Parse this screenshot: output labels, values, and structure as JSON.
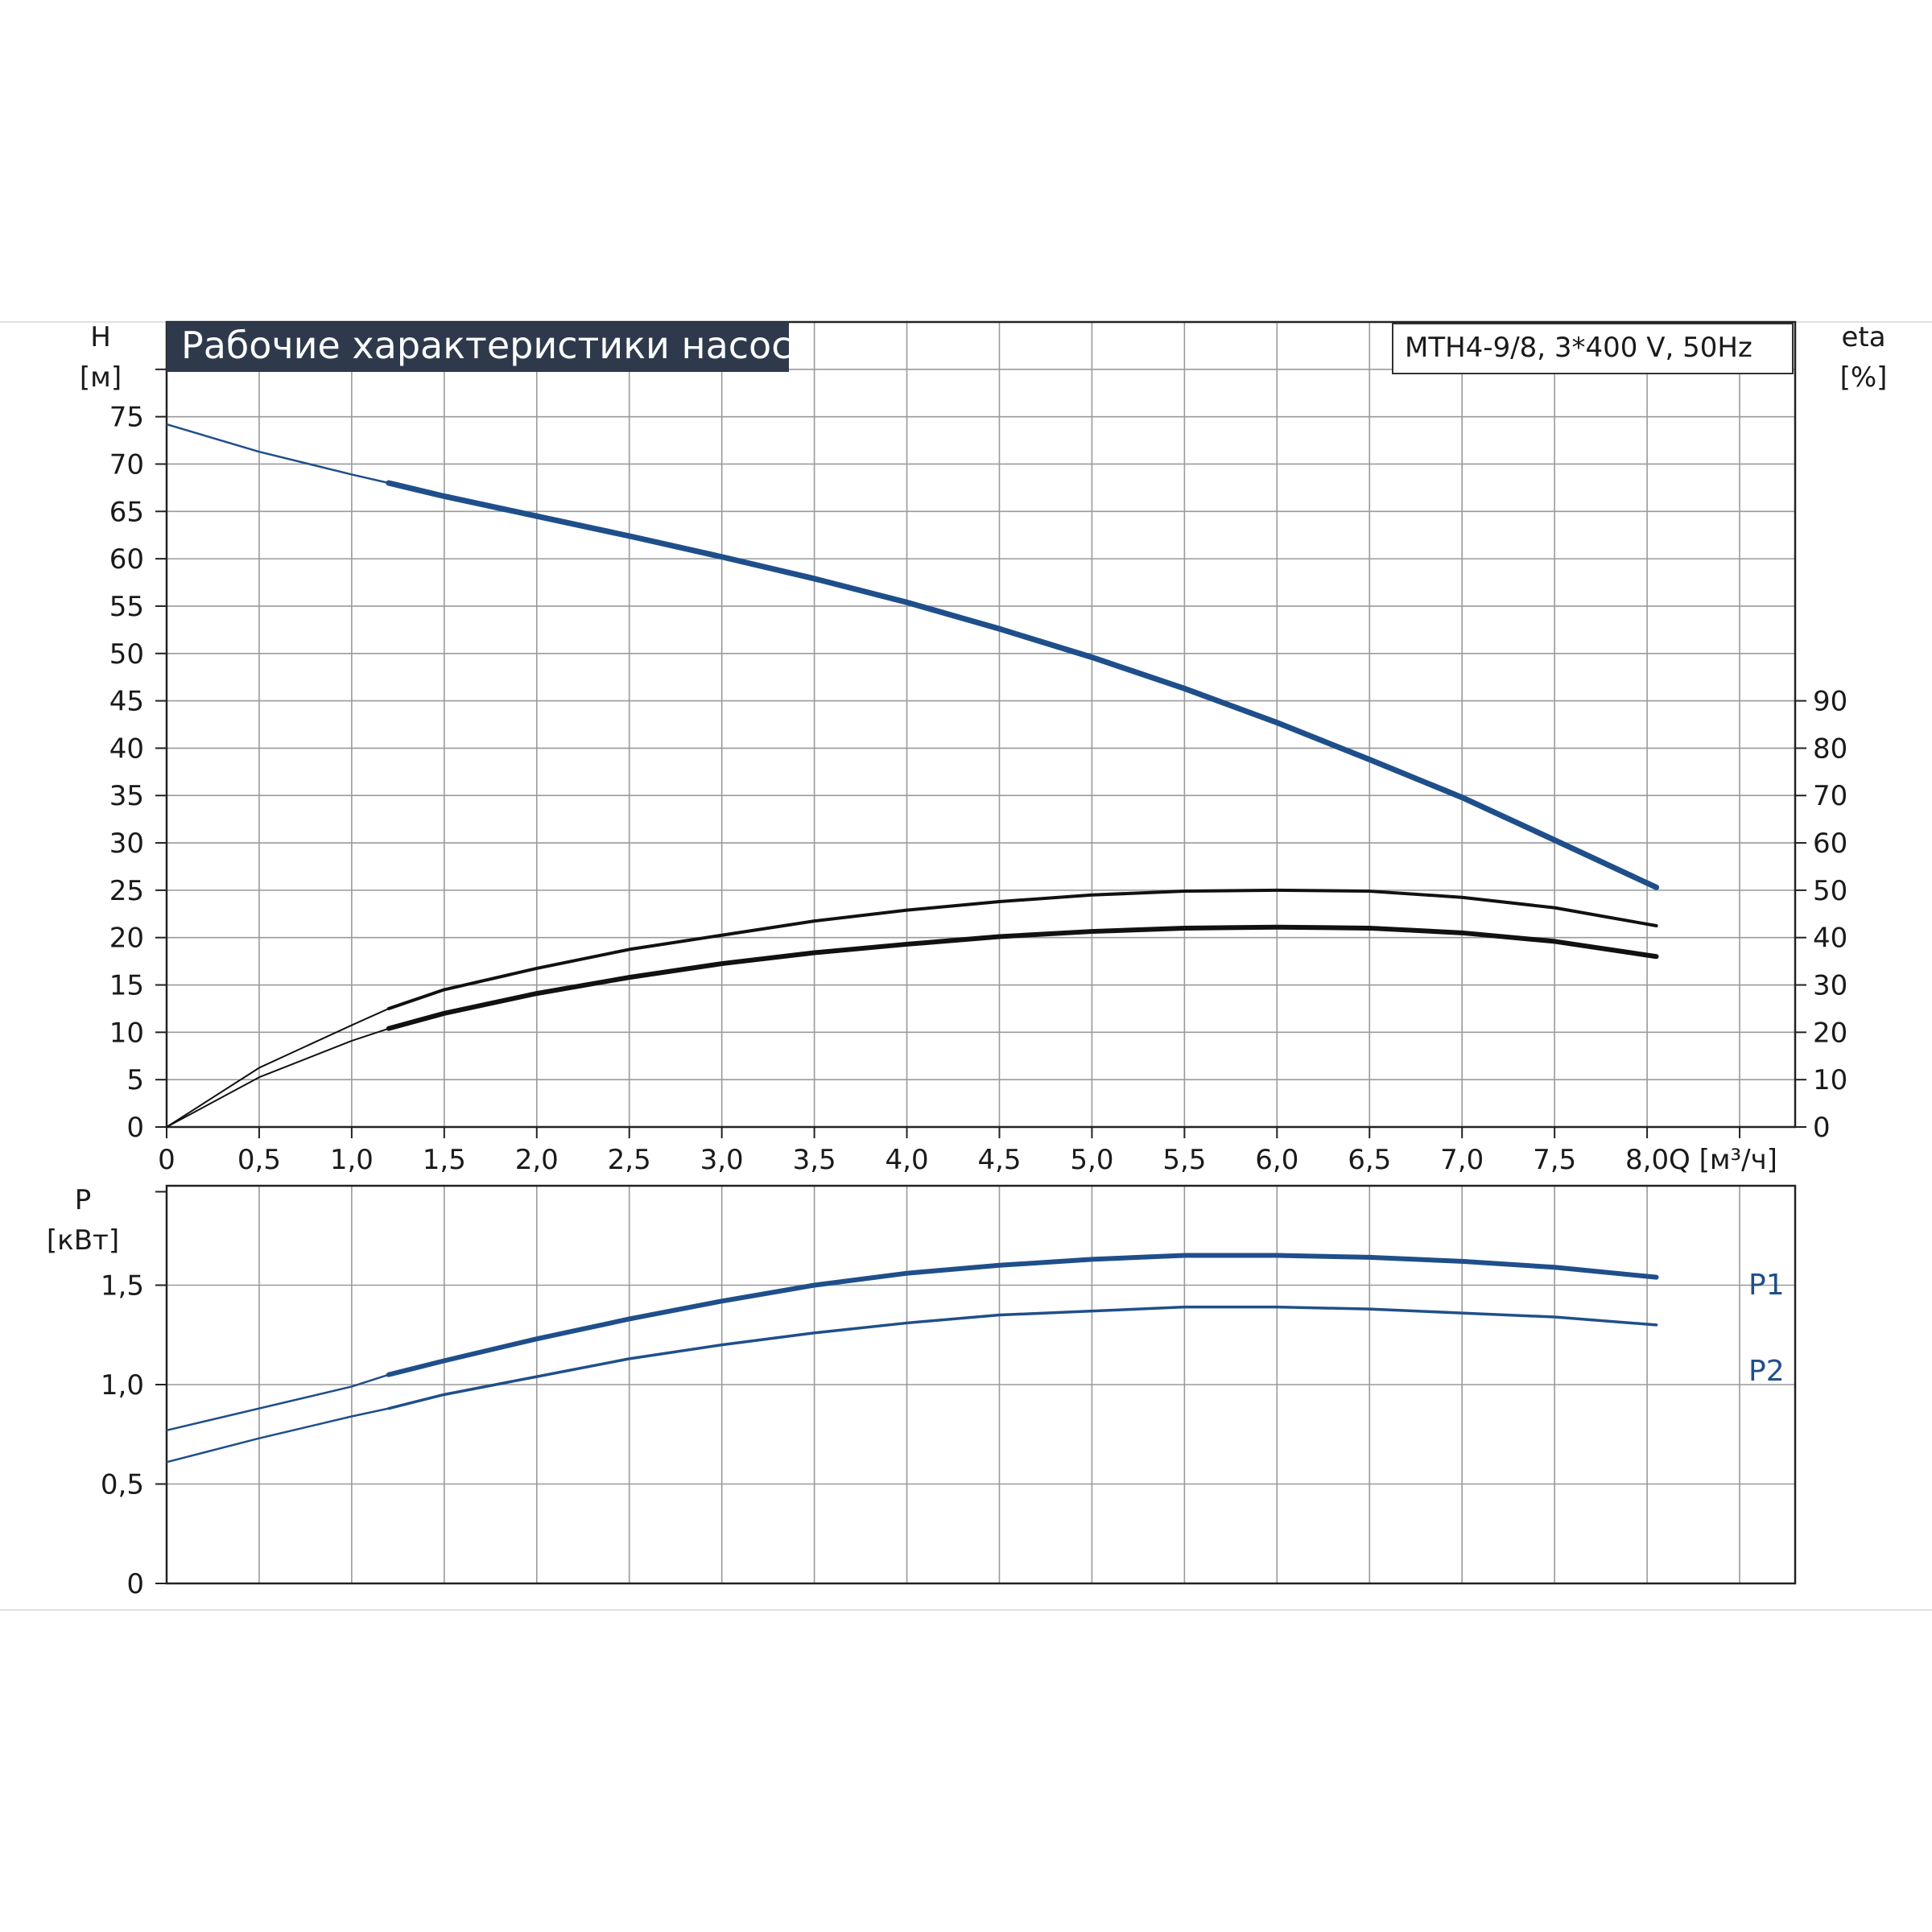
{
  "chart_data": [
    {
      "type": "line",
      "title": "Рабочие характеристики насоса",
      "subtitle": "MTH4-9/8, 3*400 V, 50Hz",
      "xlabel": "Q [м³/ч]",
      "ylabel_left": [
        "H",
        "[м]"
      ],
      "ylabel_right": [
        "eta",
        "[%]"
      ],
      "xlim": [
        0,
        8.8
      ],
      "ylim_left": [
        0,
        85
      ],
      "ylim_right": [
        0,
        170
      ],
      "x_ticks": [
        "0",
        "0,5",
        "1,0",
        "1,5",
        "2,0",
        "2,5",
        "3,0",
        "3,5",
        "4,0",
        "4,5",
        "5,0",
        "5,5",
        "6,0",
        "6,5",
        "7,0",
        "7,5",
        "8,0"
      ],
      "y_ticks_left": [
        "0",
        "5",
        "10",
        "15",
        "20",
        "25",
        "30",
        "35",
        "40",
        "45",
        "50",
        "55",
        "60",
        "65",
        "70",
        "75"
      ],
      "y_ticks_right": [
        "0",
        "10",
        "20",
        "30",
        "40",
        "50",
        "60",
        "70",
        "80",
        "90"
      ],
      "grid": true,
      "series": [
        {
          "axis": "left",
          "color": "#1f4f8b",
          "x": [
            0,
            0.5,
            1.0,
            1.2,
            1.5,
            2.0,
            2.5,
            3.0,
            3.5,
            4.0,
            4.5,
            5.0,
            5.5,
            6.0,
            6.5,
            7.0,
            7.5,
            8.05
          ],
          "values": [
            74.2,
            71.3,
            68.9,
            68.0,
            66.6,
            64.5,
            62.4,
            60.2,
            57.9,
            55.4,
            52.6,
            49.6,
            46.3,
            42.7,
            38.8,
            34.8,
            30.3,
            25.3
          ]
        },
        {
          "axis": "right",
          "color": "#111111",
          "x": [
            0,
            0.5,
            1.0,
            1.2,
            1.5,
            2.0,
            2.5,
            3.0,
            3.5,
            4.0,
            4.5,
            5.0,
            5.5,
            6.0,
            6.5,
            7.0,
            7.5,
            8.05
          ],
          "values": [
            0,
            12.5,
            21.5,
            25,
            29,
            33.5,
            37.5,
            40.5,
            43.5,
            45.8,
            47.6,
            49,
            49.8,
            50,
            49.8,
            48.5,
            46.3,
            42.5
          ]
        },
        {
          "axis": "right",
          "color": "#111111",
          "x": [
            0,
            0.5,
            1.0,
            1.2,
            1.5,
            2.0,
            2.5,
            3.0,
            3.5,
            4.0,
            4.5,
            5.0,
            5.5,
            6.0,
            6.5,
            7.0,
            7.5,
            8.05
          ],
          "values": [
            0,
            10.5,
            18.2,
            20.8,
            24,
            28.2,
            31.6,
            34.5,
            36.8,
            38.6,
            40.2,
            41.3,
            42,
            42.2,
            42,
            41,
            39.2,
            36
          ]
        }
      ]
    },
    {
      "type": "line",
      "xlabel": "",
      "ylabel": [
        "P",
        "[кВт]"
      ],
      "xlim": [
        0,
        8.8
      ],
      "ylim": [
        0,
        2.0
      ],
      "y_ticks": [
        "0",
        "0,5",
        "1,0",
        "1,5"
      ],
      "grid": true,
      "series": [
        {
          "name": "P1",
          "color": "#1f4f8b",
          "x": [
            0,
            0.5,
            1.0,
            1.2,
            1.5,
            2.0,
            2.5,
            3.0,
            3.5,
            4.0,
            4.5,
            5.0,
            5.5,
            6.0,
            6.5,
            7.0,
            7.5,
            8.05
          ],
          "values": [
            0.77,
            0.88,
            0.99,
            1.05,
            1.12,
            1.23,
            1.33,
            1.42,
            1.5,
            1.56,
            1.6,
            1.63,
            1.65,
            1.65,
            1.64,
            1.62,
            1.59,
            1.54
          ]
        },
        {
          "name": "P2",
          "color": "#1f4f8b",
          "x": [
            0,
            0.5,
            1.0,
            1.2,
            1.5,
            2.0,
            2.5,
            3.0,
            3.5,
            4.0,
            4.5,
            5.0,
            5.5,
            6.0,
            6.5,
            7.0,
            7.5,
            8.05
          ],
          "values": [
            0.61,
            0.73,
            0.84,
            0.88,
            0.95,
            1.04,
            1.13,
            1.2,
            1.26,
            1.31,
            1.35,
            1.37,
            1.39,
            1.39,
            1.38,
            1.36,
            1.34,
            1.3
          ]
        }
      ]
    }
  ]
}
